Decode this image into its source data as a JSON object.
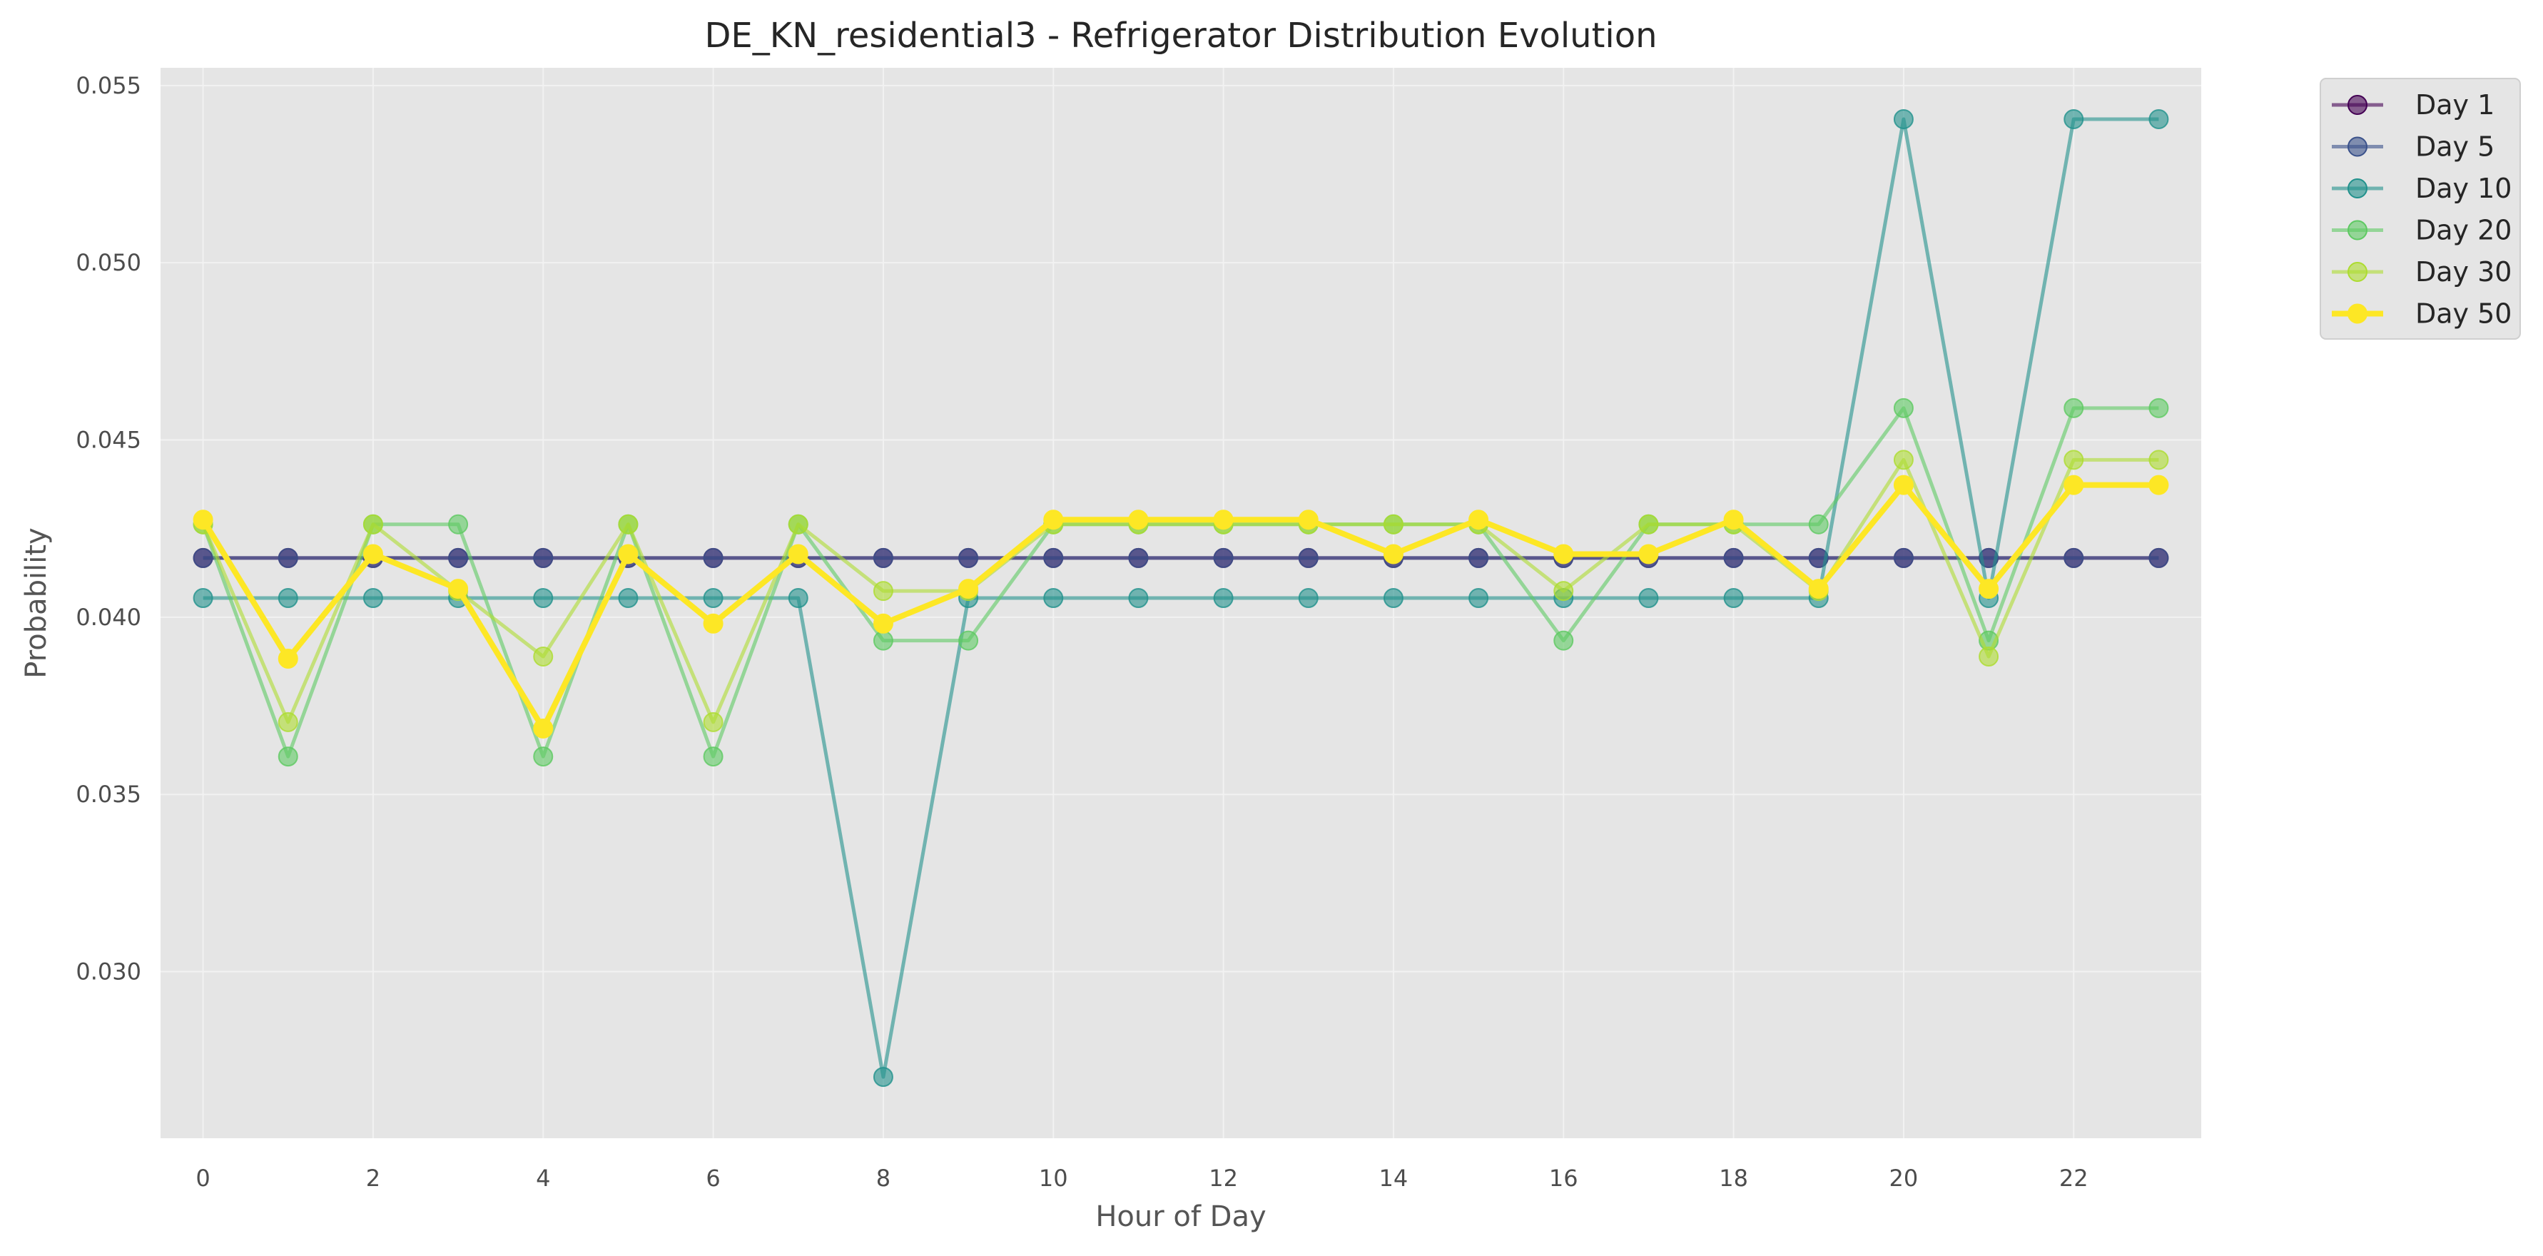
{
  "chart_data": {
    "type": "line",
    "title": "DE_KN_residential3 - Refrigerator Distribution Evolution",
    "xlabel": "Hour of Day",
    "ylabel": "Probability",
    "xlim": [
      -0.5,
      23.5
    ],
    "ylim": [
      0.0253,
      0.0555
    ],
    "x": [
      0,
      1,
      2,
      3,
      4,
      5,
      6,
      7,
      8,
      9,
      10,
      11,
      12,
      13,
      14,
      15,
      16,
      17,
      18,
      19,
      20,
      21,
      22,
      23
    ],
    "x_ticks": [
      0,
      2,
      4,
      6,
      8,
      10,
      12,
      14,
      16,
      18,
      20,
      22
    ],
    "y_ticks": [
      0.03,
      0.035,
      0.04,
      0.045,
      0.05,
      0.055
    ],
    "y_tick_labels": [
      "0.030",
      "0.035",
      "0.040",
      "0.045",
      "0.050",
      "0.055"
    ],
    "grid": true,
    "legend_position": "outside-top-right",
    "background": "#e5e5e5",
    "series": [
      {
        "name": "Day 1",
        "color": "#440154",
        "width": 5,
        "values": [
          0.04167,
          0.04167,
          0.04167,
          0.04167,
          0.04167,
          0.04167,
          0.04167,
          0.04167,
          0.04167,
          0.04167,
          0.04167,
          0.04167,
          0.04167,
          0.04167,
          0.04167,
          0.04167,
          0.04167,
          0.04167,
          0.04167,
          0.04167,
          0.04167,
          0.04167,
          0.04167,
          0.04167
        ]
      },
      {
        "name": "Day 5",
        "color": "#3b528b",
        "width": 5,
        "values": [
          0.04167,
          0.04167,
          0.04167,
          0.04167,
          0.04167,
          0.04167,
          0.04167,
          0.04167,
          0.04167,
          0.04167,
          0.04167,
          0.04167,
          0.04167,
          0.04167,
          0.04167,
          0.04167,
          0.04167,
          0.04167,
          0.04167,
          0.04167,
          0.04167,
          0.04167,
          0.04167,
          0.04167
        ]
      },
      {
        "name": "Day 10",
        "color": "#21918c",
        "width": 5,
        "values": [
          0.04054,
          0.04054,
          0.04054,
          0.04054,
          0.04054,
          0.04054,
          0.04054,
          0.04054,
          0.02703,
          0.04054,
          0.04054,
          0.04054,
          0.04054,
          0.04054,
          0.04054,
          0.04054,
          0.04054,
          0.04054,
          0.04054,
          0.04054,
          0.05405,
          0.04054,
          0.05405,
          0.05405
        ]
      },
      {
        "name": "Day 20",
        "color": "#5ec962",
        "width": 5,
        "values": [
          0.04262,
          0.03607,
          0.04262,
          0.04262,
          0.03607,
          0.04262,
          0.03607,
          0.04262,
          0.03934,
          0.03934,
          0.04262,
          0.04262,
          0.04262,
          0.04262,
          0.04262,
          0.04262,
          0.03934,
          0.04262,
          0.04262,
          0.04262,
          0.0459,
          0.03934,
          0.0459,
          0.0459
        ]
      },
      {
        "name": "Day 30",
        "color": "#addc30",
        "width": 5,
        "values": [
          0.04262,
          0.03704,
          0.04262,
          0.04074,
          0.03889,
          0.04262,
          0.03704,
          0.04262,
          0.04074,
          0.04074,
          0.04262,
          0.04262,
          0.04262,
          0.04262,
          0.04262,
          0.04262,
          0.04074,
          0.04262,
          0.04262,
          0.04074,
          0.04444,
          0.03889,
          0.04444,
          0.04444
        ]
      },
      {
        "name": "Day 50",
        "color": "#fde725",
        "width": 8,
        "values": [
          0.04275,
          0.03883,
          0.04178,
          0.0408,
          0.03686,
          0.04178,
          0.03982,
          0.04178,
          0.03982,
          0.0408,
          0.04275,
          0.04275,
          0.04275,
          0.04275,
          0.04178,
          0.04275,
          0.04178,
          0.04178,
          0.04275,
          0.0408,
          0.04373,
          0.0408,
          0.04373,
          0.04373
        ]
      }
    ]
  }
}
